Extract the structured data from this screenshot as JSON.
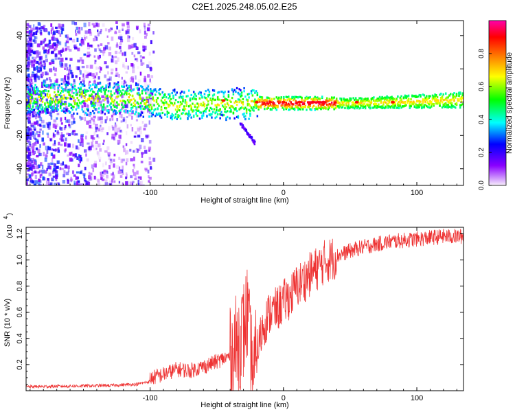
{
  "title": "C2E1.2025.248.05.02.E25",
  "chart_data": [
    {
      "type": "heatmap",
      "title": "C2E1.2025.248.05.02.E25",
      "xlabel": "Height of straight line (km)",
      "ylabel": "Frequency (Hz)",
      "xlim": [
        -193,
        135
      ],
      "ylim": [
        -50,
        49
      ],
      "xticks": [
        -100,
        0,
        100
      ],
      "yticks": [
        -40,
        -20,
        0,
        20,
        40
      ],
      "ytick_labels": [
        "-40",
        "-20",
        "0",
        "20",
        "40"
      ],
      "colorbar": {
        "label": "Normalized spectral amplitude",
        "range": [
          0.0,
          1.0
        ],
        "ticks": [
          0.0,
          0.2,
          0.4,
          0.6,
          0.8
        ],
        "tick_labels": [
          "0.0",
          "0.2",
          "0.4",
          "0.6",
          "0.8"
        ],
        "colors": [
          "#f7eefb",
          "#8a00ff",
          "#0000ff",
          "#00ffff",
          "#00ff00",
          "#ffff00",
          "#ff8000",
          "#ff0000",
          "#ff00aa"
        ]
      },
      "ridge": {
        "x": [
          -193,
          -150,
          -120,
          -100,
          -80,
          -60,
          -45,
          -30,
          -20,
          0,
          20,
          50,
          100,
          135
        ],
        "y": [
          3,
          3,
          3,
          1,
          -2,
          0,
          0,
          -1,
          0,
          0,
          0,
          0,
          1,
          2
        ]
      },
      "branch": {
        "x": [
          -33,
          -22
        ],
        "y": [
          -12,
          -24
        ]
      }
    },
    {
      "type": "line",
      "xlabel": "Height of straight line (km)",
      "ylabel": "SNR (10 * v/v)",
      "scale_label": "(x10",
      "scale_exponent": "4",
      "xlim": [
        -193,
        135
      ],
      "ylim": [
        0,
        1.25
      ],
      "xticks": [
        -100,
        0,
        100
      ],
      "yticks": [
        0.2,
        0.4,
        0.6,
        0.8,
        1.0,
        1.2
      ],
      "ytick_labels": [
        "0.2",
        "0.4",
        "0.6",
        "0.8",
        "1.0",
        "1.2"
      ],
      "color": "#ee3333",
      "series": [
        {
          "name": "SNR",
          "x": [
            -193,
            -160,
            -130,
            -110,
            -100,
            -90,
            -80,
            -70,
            -60,
            -50,
            -40,
            -35,
            -30,
            -27,
            -25,
            -22,
            -20,
            -15,
            -10,
            -5,
            0,
            5,
            10,
            15,
            20,
            30,
            40,
            50,
            60,
            70,
            80,
            90,
            100,
            110,
            120,
            135
          ],
          "y": [
            0.03,
            0.035,
            0.04,
            0.05,
            0.07,
            0.1,
            0.14,
            0.13,
            0.16,
            0.2,
            0.24,
            0.35,
            0.45,
            0.6,
            0.3,
            0.1,
            0.3,
            0.5,
            0.6,
            0.62,
            0.68,
            0.72,
            0.8,
            0.84,
            0.89,
            0.98,
            1.03,
            1.07,
            1.1,
            1.12,
            1.14,
            1.15,
            1.16,
            1.17,
            1.18,
            1.18
          ]
        }
      ]
    }
  ]
}
